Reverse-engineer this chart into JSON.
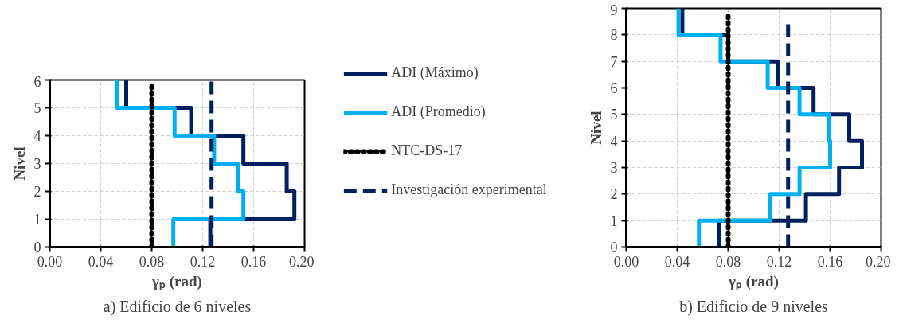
{
  "chart_data": [
    {
      "type": "line",
      "title": "a) Edificio de 6 niveles",
      "xlabel": "γₚ (rad)",
      "ylabel": "Nivel",
      "xlim": [
        0,
        0.2
      ],
      "xticks": [
        {
          "value": 0,
          "label": "0.00"
        },
        {
          "value": 0.04,
          "label": "0.04"
        },
        {
          "value": 0.08,
          "label": "0.08"
        },
        {
          "value": 0.12,
          "label": "0.12"
        },
        {
          "value": 0.16,
          "label": "0.16"
        },
        {
          "value": 0.2,
          "label": "0.20"
        }
      ],
      "ylim": [
        0,
        6
      ],
      "yticks": [
        0,
        1,
        2,
        3,
        4,
        5,
        6
      ],
      "grid": true,
      "legend": "right",
      "series": [
        {
          "name": "ADI (Máximo)",
          "color": "#002060",
          "line_style": "solid",
          "x": [
            0.126,
            0.126,
            0.192,
            0.192,
            0.186,
            0.186,
            0.152,
            0.152,
            0.111,
            0.111,
            0.06,
            0.06
          ],
          "values": [
            0,
            1,
            1,
            2,
            2,
            3,
            3,
            4,
            4,
            5,
            5,
            6
          ]
        },
        {
          "name": "ADI (Promedio)",
          "color": "#00b0f0",
          "line_style": "solid",
          "x": [
            0.097,
            0.097,
            0.152,
            0.152,
            0.148,
            0.148,
            0.129,
            0.129,
            0.098,
            0.098,
            0.053,
            0.053
          ],
          "values": [
            0,
            1,
            1,
            2,
            2,
            3,
            3,
            4,
            4,
            5,
            5,
            6
          ]
        },
        {
          "name": "NTC-DS-17",
          "color": "#000000",
          "line_style": "dotted",
          "x": [
            0.08,
            0.08
          ],
          "values": [
            0,
            5.8
          ]
        },
        {
          "name": "Investigación experimental",
          "color": "#002060",
          "line_style": "dashed",
          "x": [
            0.127,
            0.127
          ],
          "values": [
            0,
            6
          ]
        }
      ]
    },
    {
      "type": "line",
      "title": "b) Edificio de 9 niveles",
      "xlabel": "γₚ (rad)",
      "ylabel": "Nivel",
      "xlim": [
        0,
        0.2
      ],
      "xticks": [
        {
          "value": 0,
          "label": "0.00"
        },
        {
          "value": 0.04,
          "label": "0.04"
        },
        {
          "value": 0.08,
          "label": "0.08"
        },
        {
          "value": 0.12,
          "label": "0.12"
        },
        {
          "value": 0.16,
          "label": "0.16"
        },
        {
          "value": 0.2,
          "label": "0.20"
        }
      ],
      "ylim": [
        0,
        9
      ],
      "yticks": [
        0,
        1,
        2,
        3,
        4,
        5,
        6,
        7,
        8,
        9
      ],
      "grid": true,
      "series": [
        {
          "color": "#002060",
          "line_style": "solid",
          "x": [
            0.073,
            0.073,
            0.141,
            0.141,
            0.167,
            0.167,
            0.185,
            0.185,
            0.175,
            0.175,
            0.147,
            0.147,
            0.119,
            0.119,
            0.08,
            0.08,
            0.044,
            0.044
          ],
          "values": [
            0,
            1,
            1,
            2,
            2,
            3,
            3,
            4,
            4,
            5,
            5,
            6,
            6,
            7,
            7,
            8,
            8,
            9
          ]
        },
        {
          "color": "#00b0f0",
          "line_style": "solid",
          "x": [
            0.057,
            0.057,
            0.113,
            0.113,
            0.136,
            0.136,
            0.16,
            0.16,
            0.159,
            0.159,
            0.136,
            0.136,
            0.111,
            0.111,
            0.074,
            0.074,
            0.041,
            0.041
          ],
          "values": [
            0,
            1,
            1,
            2,
            2,
            3,
            3,
            4,
            4,
            5,
            5,
            6,
            6,
            7,
            7,
            8,
            8,
            9
          ]
        },
        {
          "color": "#000000",
          "line_style": "dotted",
          "x": [
            0.08,
            0.08
          ],
          "values": [
            0,
            8.7
          ]
        },
        {
          "color": "#002060",
          "line_style": "dashed",
          "x": [
            0.127,
            0.127
          ],
          "values": [
            0,
            8.4
          ]
        }
      ]
    }
  ]
}
